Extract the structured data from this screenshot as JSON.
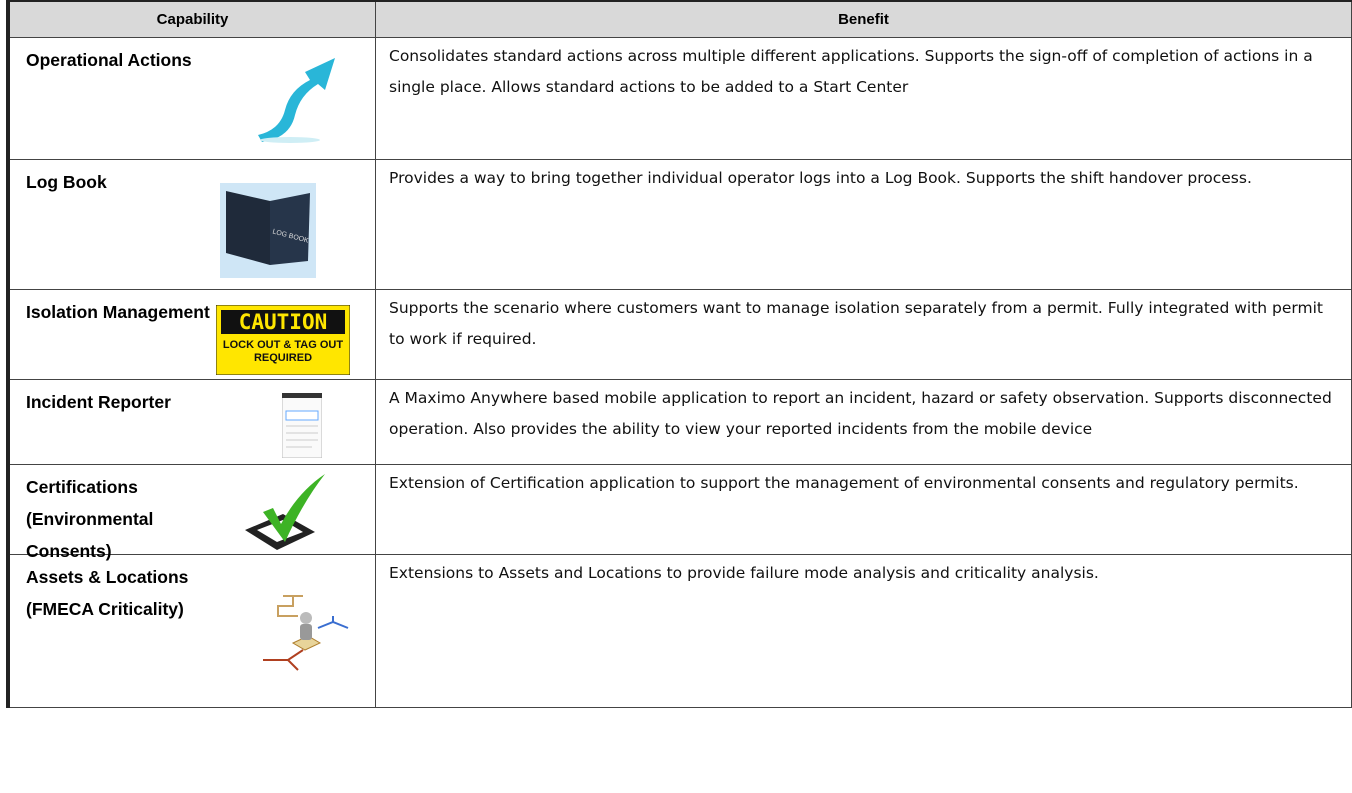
{
  "table": {
    "headers": [
      "Capability",
      "Benefit"
    ],
    "rows": [
      {
        "capability": "Operational Actions",
        "benefit": "Consolidates standard actions across multiple different applications. Supports the sign-off of completion of actions in a single place. Allows standard actions to be added to a Start Center"
      },
      {
        "capability": "Log Book",
        "benefit": "Provides a way to bring together individual operator logs into a Log Book. Supports the shift handover process."
      },
      {
        "capability": "Isolation Management",
        "benefit": "Supports the scenario where customers want to manage isolation separately from a permit. Fully integrated with permit to work if required."
      },
      {
        "capability": "Incident Reporter",
        "benefit": "A Maximo Anywhere based mobile application to report an incident, hazard or safety observation. Supports disconnected operation. Also provides the ability to view your reported incidents from the mobile device"
      },
      {
        "capability": "Certifications (Environmental Consents)",
        "benefit": "Extension of Certification application to support the management of environmental consents and regulatory permits."
      },
      {
        "capability": "Assets & Locations (FMECA Criticality)",
        "benefit": "Extensions to Assets and Locations to provide failure mode analysis and criticality analysis."
      }
    ]
  },
  "icons": {
    "log_book": "LOG BOOK",
    "caution_title": "CAUTION",
    "caution_text": "LOCK OUT & TAG OUT REQUIRED"
  }
}
